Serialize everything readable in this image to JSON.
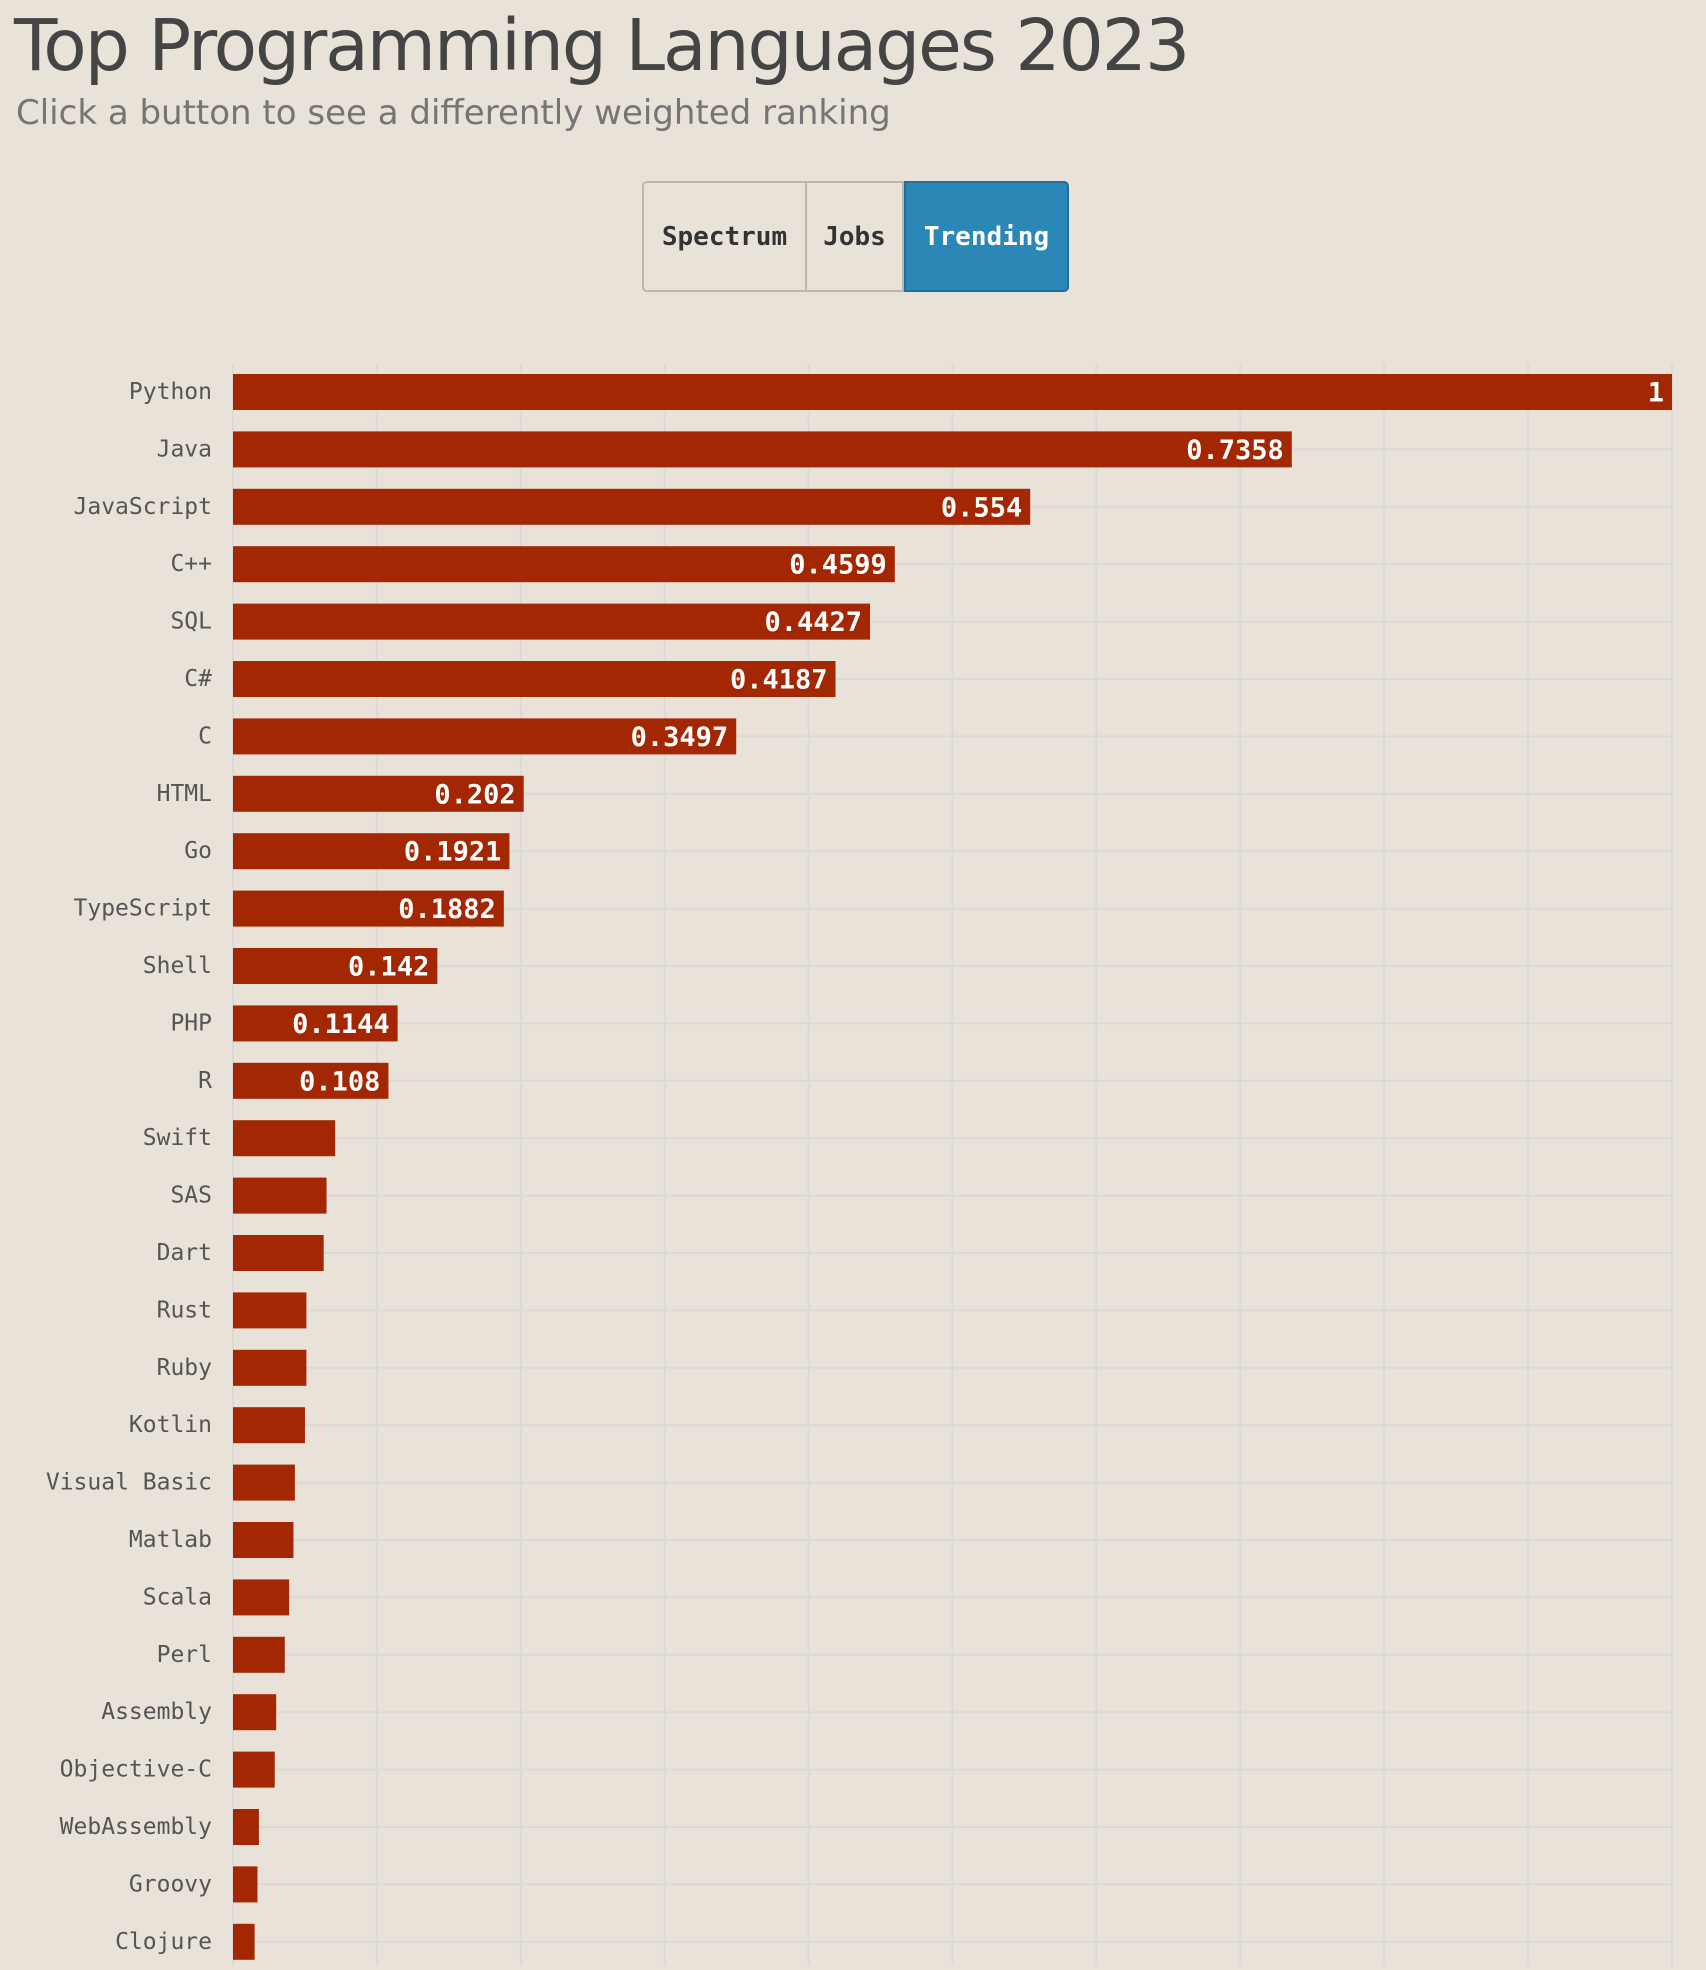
{
  "header": {
    "title": "Top Programming Languages 2023",
    "subtitle": "Click a button to see a differently weighted ranking"
  },
  "buttons": [
    {
      "label": "Spectrum",
      "active": false
    },
    {
      "label": "Jobs",
      "active": false
    },
    {
      "label": "Trending",
      "active": true
    }
  ],
  "colors": {
    "background": "#e8e2d8",
    "bar": "#a22702",
    "active_button": "#2a87b6",
    "grid": "#d9d9d9"
  },
  "chart_data": {
    "type": "bar",
    "orientation": "horizontal",
    "title": "Top Programming Languages 2023",
    "xlim": [
      0,
      1
    ],
    "grid": true,
    "categories": [
      "Python",
      "Java",
      "JavaScript",
      "C++",
      "SQL",
      "C#",
      "C",
      "HTML",
      "Go",
      "TypeScript",
      "Shell",
      "PHP",
      "R",
      "Swift",
      "SAS",
      "Dart",
      "Rust",
      "Ruby",
      "Kotlin",
      "Visual Basic",
      "Matlab",
      "Scala",
      "Perl",
      "Assembly",
      "Objective-C",
      "WebAssembly",
      "Groovy",
      "Clojure"
    ],
    "values": [
      1,
      0.7358,
      0.554,
      0.4599,
      0.4427,
      0.4187,
      0.3497,
      0.202,
      0.1921,
      0.1882,
      0.142,
      0.1144,
      0.108,
      0.071,
      0.065,
      0.063,
      0.051,
      0.051,
      0.05,
      0.043,
      0.042,
      0.039,
      0.036,
      0.03,
      0.029,
      0.018,
      0.017,
      0.015
    ],
    "data_labels": [
      "1",
      "0.7358",
      "0.554",
      "0.4599",
      "0.4427",
      "0.4187",
      "0.3497",
      "0.202",
      "0.1921",
      "0.1882",
      "0.142",
      "0.1144",
      "0.108",
      "",
      "",
      "",
      "",
      "",
      "",
      "",
      "",
      "",
      "",
      "",
      "",
      "",
      "",
      ""
    ]
  }
}
